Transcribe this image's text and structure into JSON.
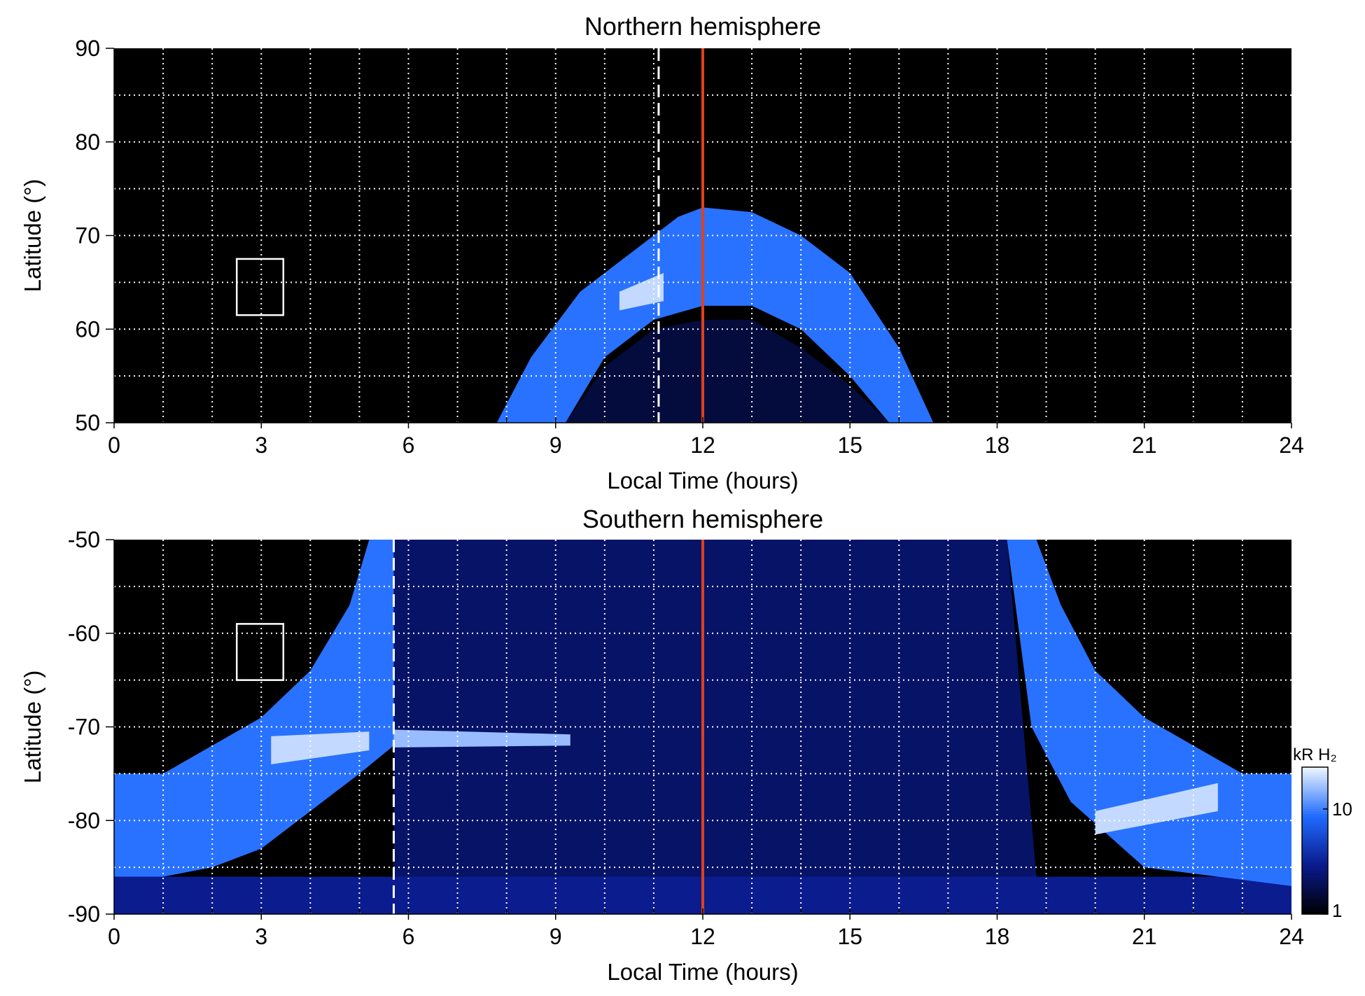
{
  "chart_data": [
    {
      "type": "heatmap",
      "title": "Northern hemisphere",
      "xlabel": "Local Time (hours)",
      "ylabel": "Latitude (°)",
      "xlim": [
        0,
        24
      ],
      "ylim": [
        50,
        90
      ],
      "xticks": [
        0,
        3,
        6,
        9,
        12,
        15,
        18,
        21,
        24
      ],
      "yticks": [
        50,
        60,
        70,
        80,
        90
      ],
      "xgrid": [
        1,
        2,
        3,
        4,
        5,
        6,
        7,
        8,
        9,
        10,
        11,
        12,
        13,
        14,
        15,
        16,
        17,
        18,
        19,
        20,
        21,
        22,
        23
      ],
      "ygrid": [
        55,
        60,
        65,
        70,
        75,
        80,
        85
      ],
      "regions": [
        {
          "x": [
            9.2,
            10,
            11,
            12,
            13,
            14,
            15,
            15.8
          ],
          "y": [
            50,
            56,
            60,
            61,
            61,
            58,
            54,
            50
          ],
          "value": 1.6
        },
        {
          "x": [
            7.8,
            8.5,
            9.5,
            10.5,
            11.5,
            12,
            13,
            14,
            15,
            16,
            16.7,
            15.8,
            15,
            14,
            13,
            12,
            11,
            10,
            9.2
          ],
          "y": [
            50,
            57,
            64,
            68,
            72,
            73,
            72.5,
            70,
            66,
            58,
            50,
            50,
            55,
            60,
            62.5,
            62.5,
            61,
            57,
            50
          ],
          "value": 9
        },
        {
          "x": [
            10.3,
            11.2,
            11.2,
            10.3
          ],
          "y": [
            64,
            66,
            63,
            62
          ],
          "value": 20
        }
      ],
      "vlines": [
        {
          "x": 11.1,
          "color": "#ffffff",
          "dash": true
        },
        {
          "x": 12,
          "color": "#e0401a",
          "dash": false
        }
      ],
      "boxes": [
        {
          "x": [
            2.5,
            3.45
          ],
          "y": [
            61.5,
            67.5
          ]
        }
      ]
    },
    {
      "type": "heatmap",
      "title": "Southern hemisphere",
      "xlabel": "Local Time (hours)",
      "ylabel": "Latitude (°)",
      "xlim": [
        0,
        24
      ],
      "ylim": [
        -90,
        -50
      ],
      "xticks": [
        0,
        3,
        6,
        9,
        12,
        15,
        18,
        21,
        24
      ],
      "yticks": [
        -90,
        -80,
        -70,
        -60,
        -50
      ],
      "xgrid": [
        1,
        2,
        3,
        4,
        5,
        6,
        7,
        8,
        9,
        10,
        11,
        12,
        13,
        14,
        15,
        16,
        17,
        18,
        19,
        20,
        21,
        22,
        23
      ],
      "ygrid": [
        -85,
        -80,
        -75,
        -70,
        -65,
        -60,
        -55
      ],
      "regions": [
        {
          "x": [
            5.7,
            18.2,
            18.8,
            5.7
          ],
          "y": [
            -50,
            -50,
            -86,
            -86
          ],
          "value": 2.2
        },
        {
          "x": [
            0,
            24,
            24,
            0
          ],
          "y": [
            -86,
            -86,
            -90,
            -90
          ],
          "value": 3
        },
        {
          "x": [
            0,
            1,
            2,
            3,
            4,
            4.8,
            5.2,
            5.7,
            5.7,
            5,
            4,
            3,
            2,
            1,
            0
          ],
          "y": [
            -75,
            -75,
            -72,
            -69,
            -64,
            -57,
            -50,
            -50,
            -72,
            -75,
            -79,
            -83,
            -85,
            -86,
            -86
          ],
          "value": 9
        },
        {
          "x": [
            24,
            23,
            22,
            21,
            20,
            19.3,
            18.8,
            18.2,
            18.7,
            19.5,
            21,
            22.5,
            24
          ],
          "y": [
            -75,
            -75,
            -72,
            -69,
            -64,
            -57,
            -50,
            -50,
            -70,
            -78,
            -85,
            -86,
            -87
          ],
          "value": 9
        },
        {
          "x": [
            5.7,
            9.3,
            9.3,
            5.7
          ],
          "y": [
            -70.3,
            -70.8,
            -72,
            -72.2
          ],
          "value": 16
        },
        {
          "x": [
            3.2,
            5.2,
            5.2,
            3.2
          ],
          "y": [
            -71,
            -70.5,
            -72.5,
            -74
          ],
          "value": 20
        },
        {
          "x": [
            20,
            22.5,
            22.5,
            20
          ],
          "y": [
            -79,
            -76,
            -79,
            -81.5
          ],
          "value": 20
        }
      ],
      "vlines": [
        {
          "x": 5.7,
          "color": "#ffffff",
          "dash": true
        },
        {
          "x": 12,
          "color": "#e0401a",
          "dash": false
        }
      ],
      "boxes": [
        {
          "x": [
            2.5,
            3.45
          ],
          "y": [
            -59,
            -65
          ]
        }
      ]
    }
  ],
  "colorbar": {
    "label": "kR H₂",
    "lim": [
      1,
      25
    ],
    "ticks": [
      1,
      10
    ],
    "log": true,
    "colors": [
      "#000000",
      "#0a1a8c",
      "#1f6bff",
      "#eef6ff"
    ]
  }
}
